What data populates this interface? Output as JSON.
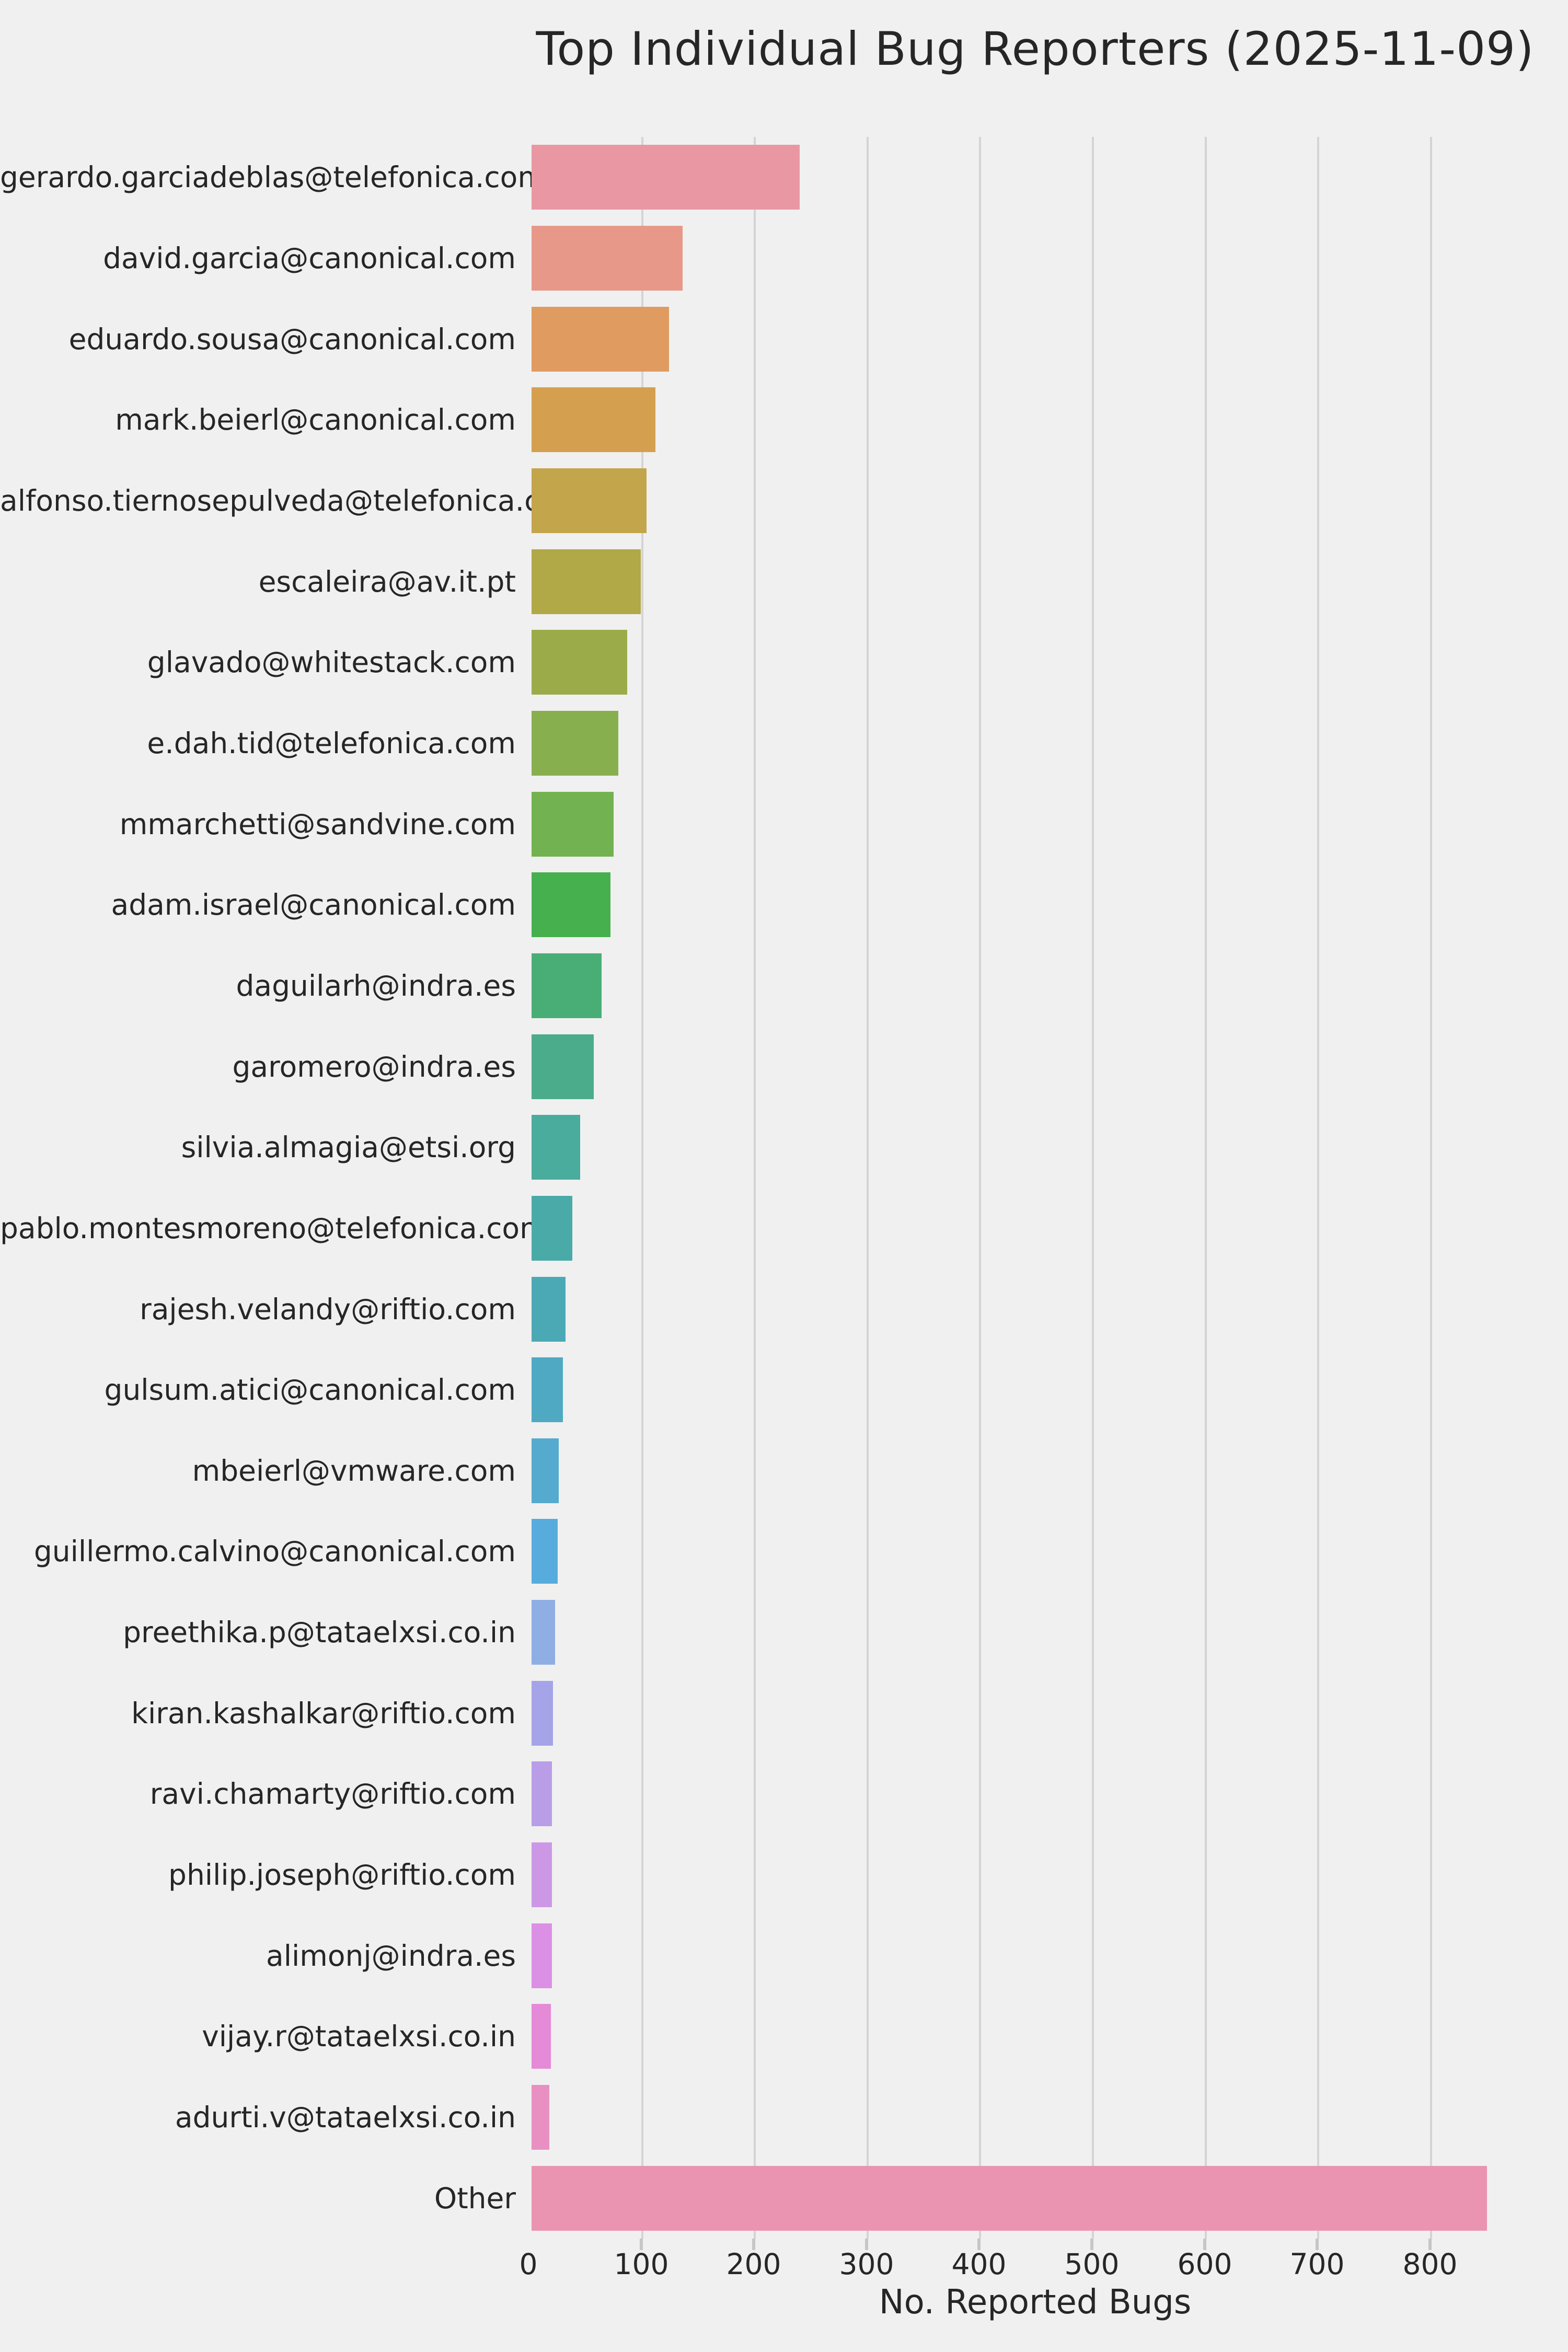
{
  "chart_data": {
    "type": "bar",
    "orientation": "horizontal",
    "title": "Top Individual Bug Reporters (2025-11-09)",
    "xlabel": "No. Reported Bugs",
    "ylabel": "",
    "grid": true,
    "legend": "none",
    "xlim": [
      0,
      899
    ],
    "x_ticks": [
      0,
      100,
      200,
      300,
      400,
      500,
      600,
      700,
      800
    ],
    "background_color": "#f0f0f0",
    "gridline_color": "#d4d4d4",
    "tick_color": "#c6c6c6",
    "text_color": "#262626",
    "categories": [
      "gerardo.garciadeblas@telefonica.com",
      "david.garcia@canonical.com",
      "eduardo.sousa@canonical.com",
      "mark.beierl@canonical.com",
      "alfonso.tiernosepulveda@telefonica.com",
      "escaleira@av.it.pt",
      "glavado@whitestack.com",
      "e.dah.tid@telefonica.com",
      "mmarchetti@sandvine.com",
      "adam.israel@canonical.com",
      "daguilarh@indra.es",
      "garomero@indra.es",
      "silvia.almagia@etsi.org",
      "pablo.montesmoreno@telefonica.com",
      "rajesh.velandy@riftio.com",
      "gulsum.atici@canonical.com",
      "mbeierl@vmware.com",
      "guillermo.calvino@canonical.com",
      "preethika.p@tataelxsi.co.in",
      "kiran.kashalkar@riftio.com",
      "ravi.chamarty@riftio.com",
      "philip.joseph@riftio.com",
      "alimonj@indra.es",
      "vijay.r@tataelxsi.co.in",
      "adurti.v@tataelxsi.co.in",
      "Other"
    ],
    "values": [
      238,
      134,
      122,
      110,
      102,
      97,
      85,
      77,
      73,
      70,
      62,
      55,
      43,
      36,
      30,
      28,
      24,
      23,
      21,
      19,
      18,
      18,
      18,
      17,
      16,
      848
    ],
    "colors": [
      "#ea97a4",
      "#e79889",
      "#e09b60",
      "#d4a050",
      "#c3a54b",
      "#b1a847",
      "#9cab4a",
      "#88af4e",
      "#72b251",
      "#46b04f",
      "#49ae76",
      "#4bac8b",
      "#49ac9c",
      "#4aaaa8",
      "#4ba9b5",
      "#4fa9c2",
      "#54abce",
      "#57acdd",
      "#8eaee4",
      "#a5a4e8",
      "#b99de7",
      "#cc98e5",
      "#dc90e5",
      "#e48ad6",
      "#e890c2",
      "#ea94b1"
    ]
  }
}
